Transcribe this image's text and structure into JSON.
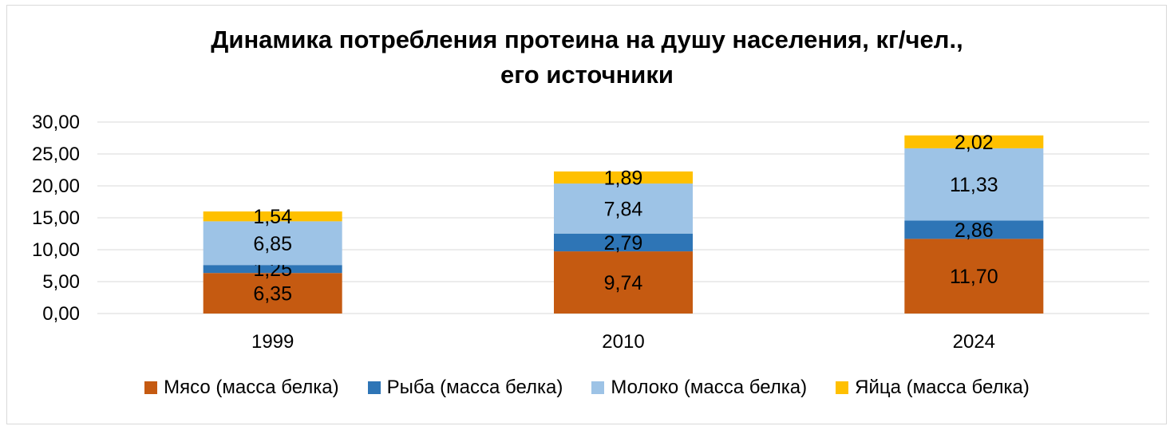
{
  "chart_data": {
    "type": "bar",
    "stacked": true,
    "title_lines": [
      "Динамика потребления протеина на душу населения, кг/чел.,",
      "его источники"
    ],
    "categories": [
      "1999",
      "2010",
      "2024"
    ],
    "series": [
      {
        "name": "Мясо (масса белка)",
        "color": "#c55a11",
        "values": [
          6.35,
          9.74,
          11.7
        ],
        "labels": [
          "6,35",
          "9,74",
          "11,70"
        ]
      },
      {
        "name": "Рыба (масса белка)",
        "color": "#2e75b6",
        "values": [
          1.25,
          2.79,
          2.86
        ],
        "labels": [
          "1,25",
          "2,79",
          "2,86"
        ]
      },
      {
        "name": "Молоко (масса белка)",
        "color": "#9dc3e6",
        "values": [
          6.85,
          7.84,
          11.33
        ],
        "labels": [
          "6,85",
          "7,84",
          "11,33"
        ]
      },
      {
        "name": "Яйца (масса белка)",
        "color": "#ffc000",
        "values": [
          1.54,
          1.89,
          2.02
        ],
        "labels": [
          "1,54",
          "1,89",
          "2,02"
        ]
      }
    ],
    "ylim": [
      0,
      30
    ],
    "yticks": [
      0,
      5,
      10,
      15,
      20,
      25,
      30
    ],
    "ytick_labels": [
      "0,00",
      "5,00",
      "10,00",
      "15,00",
      "20,00",
      "25,00",
      "30,00"
    ],
    "grid": true,
    "legend_position": "bottom"
  }
}
